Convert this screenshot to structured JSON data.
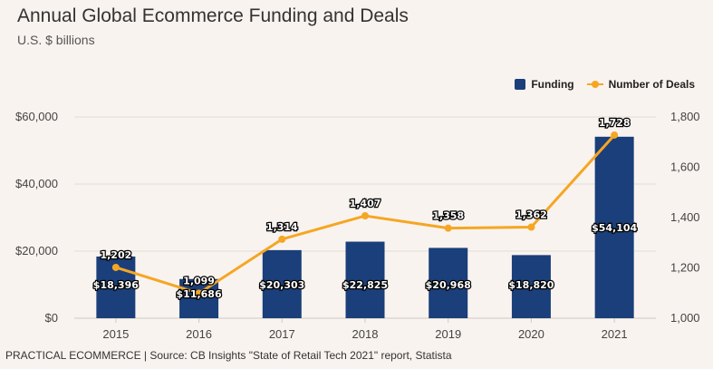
{
  "header": {
    "title": "Annual Global Ecommerce Funding and Deals",
    "subtitle": "U.S. $ billions"
  },
  "legend": {
    "funding_label": "Funding",
    "deals_label": "Number of Deals"
  },
  "footer": {
    "source": "PRACTICAL ECOMMERCE | Source: CB Insights \"State of Retail Tech 2021\" report, Statista"
  },
  "colors": {
    "bar": "#1a3f7a",
    "line": "#f5a623",
    "grid": "#e3dcd7",
    "axis": "#cfc8c3"
  },
  "chart_data": {
    "type": "bar+line",
    "categories": [
      "2015",
      "2016",
      "2017",
      "2018",
      "2019",
      "2020",
      "2021"
    ],
    "series": [
      {
        "name": "Funding",
        "type": "bar",
        "axis": "left",
        "values": [
          18396,
          11686,
          20303,
          22825,
          20968,
          18820,
          54104
        ],
        "labels": [
          "$18,396",
          "$11,686",
          "$20,303",
          "$22,825",
          "$20,968",
          "$18,820",
          "$54,104"
        ]
      },
      {
        "name": "Number of Deals",
        "type": "line",
        "axis": "right",
        "values": [
          1202,
          1099,
          1314,
          1407,
          1358,
          1362,
          1728
        ],
        "labels": [
          "1,202",
          "1,099",
          "1,314",
          "1,407",
          "1,358",
          "1,362",
          "1,728"
        ]
      }
    ],
    "left_axis": {
      "range": [
        0,
        60000
      ],
      "ticks": [
        0,
        20000,
        40000,
        60000
      ],
      "tick_labels": [
        "$0",
        "$20,000",
        "$40,000",
        "$60,000"
      ]
    },
    "right_axis": {
      "range": [
        1000,
        1800
      ],
      "ticks": [
        1000,
        1200,
        1400,
        1600,
        1800
      ],
      "tick_labels": [
        "1,000",
        "1,200",
        "1,400",
        "1,600",
        "1,800"
      ]
    },
    "grid": true,
    "legend_position": "top-right"
  }
}
